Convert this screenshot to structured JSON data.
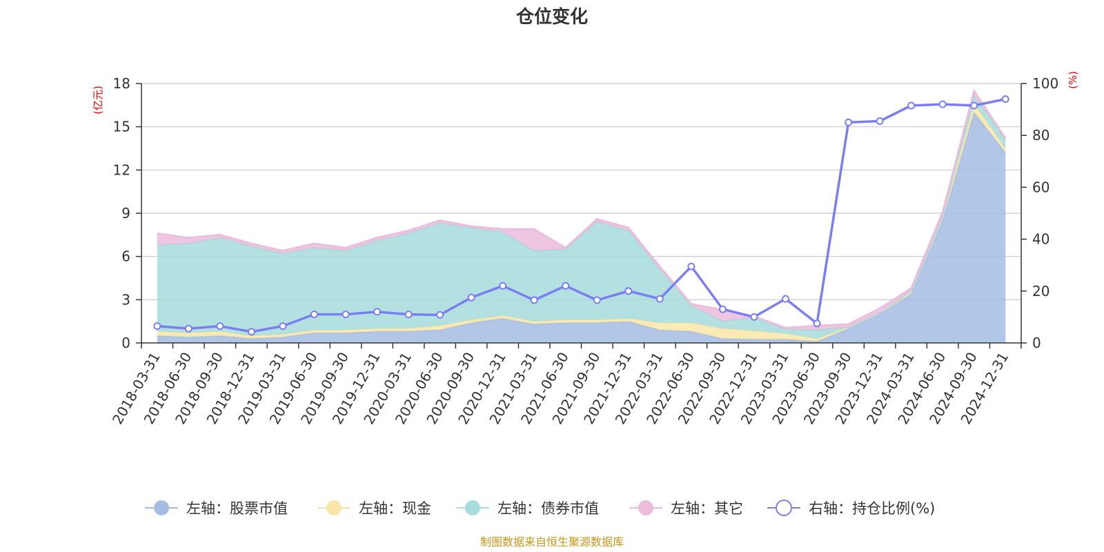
{
  "chart_data": {
    "type": "area",
    "title": "仓位变化",
    "left_axis_unit": "(亿元)",
    "right_axis_unit": "(%)",
    "left_ticks": [
      "0",
      "3",
      "6",
      "9",
      "12",
      "15",
      "18"
    ],
    "right_ticks": [
      "0",
      "20",
      "40",
      "60",
      "80",
      "100"
    ],
    "ylim_left": [
      0,
      18
    ],
    "ylim_right": [
      0,
      100
    ],
    "categories": [
      "2018-03-31",
      "2018-06-30",
      "2018-09-30",
      "2018-12-31",
      "2019-03-31",
      "2019-06-30",
      "2019-09-30",
      "2019-12-31",
      "2020-03-31",
      "2020-06-30",
      "2020-09-30",
      "2020-12-31",
      "2021-03-31",
      "2021-06-30",
      "2021-09-30",
      "2021-12-31",
      "2022-03-31",
      "2022-06-30",
      "2022-09-30",
      "2022-12-31",
      "2023-03-31",
      "2023-06-30",
      "2023-09-30",
      "2023-12-31",
      "2024-03-31",
      "2024-06-30",
      "2024-09-30",
      "2024-12-31"
    ],
    "series": [
      {
        "name": "左轴：股票市值",
        "axis": "left",
        "color": "#a5bde3",
        "values": [
          0.5,
          0.4,
          0.5,
          0.3,
          0.4,
          0.7,
          0.7,
          0.8,
          0.8,
          0.9,
          1.4,
          1.7,
          1.3,
          1.4,
          1.4,
          1.5,
          0.9,
          0.8,
          0.3,
          0.25,
          0.25,
          0.1,
          1.0,
          2.0,
          3.4,
          8.5,
          16.0,
          13.2
        ]
      },
      {
        "name": "左轴：现金",
        "axis": "left",
        "color": "#f8e6a9",
        "values": [
          0.3,
          0.3,
          0.3,
          0.2,
          0.2,
          0.2,
          0.2,
          0.2,
          0.2,
          0.3,
          0.2,
          0.2,
          0.2,
          0.2,
          0.2,
          0.2,
          0.5,
          0.6,
          0.7,
          0.6,
          0.4,
          0.2,
          0.1,
          0.1,
          0.2,
          0.3,
          0.6,
          0.3
        ]
      },
      {
        "name": "左轴：债券市值",
        "axis": "left",
        "color": "#a6dcdc",
        "values": [
          6.0,
          6.2,
          6.5,
          6.2,
          5.6,
          5.7,
          5.5,
          6.1,
          6.6,
          7.1,
          6.4,
          5.8,
          4.9,
          4.9,
          6.8,
          6.1,
          3.7,
          1.2,
          0.5,
          0.9,
          0.3,
          0.6,
          0.0,
          0.0,
          0.0,
          0.0,
          0.6,
          0.6
        ]
      },
      {
        "name": "左轴：其它",
        "axis": "left",
        "color": "#ebbcdc",
        "values": [
          0.8,
          0.4,
          0.2,
          0.2,
          0.2,
          0.3,
          0.2,
          0.2,
          0.2,
          0.2,
          0.1,
          0.2,
          1.5,
          0.1,
          0.2,
          0.2,
          0.2,
          0.1,
          0.8,
          0.1,
          0.1,
          0.3,
          0.2,
          0.3,
          0.2,
          0.3,
          0.3,
          0.1
        ]
      },
      {
        "name": "右轴：持仓比例(%)",
        "axis": "right",
        "color": "#7b7ef0",
        "values": [
          6.5,
          5.5,
          6.5,
          4.3,
          6.5,
          11.0,
          11.0,
          12.0,
          11.0,
          10.8,
          17.5,
          22.0,
          16.5,
          22.0,
          16.5,
          20.0,
          17.0,
          29.5,
          13.0,
          10.0,
          17.0,
          7.5,
          85.0,
          85.5,
          91.5,
          92.0,
          91.5,
          94.0
        ]
      }
    ]
  },
  "footer": {
    "source_text": "制图数据来自恒生聚源数据库"
  }
}
